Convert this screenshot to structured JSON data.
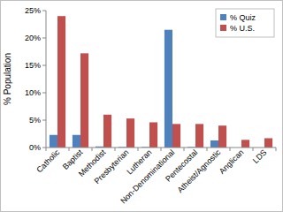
{
  "chart_data": {
    "type": "bar",
    "y_label": "% Population",
    "categories": [
      "Catholic",
      "Baptist",
      "Methodist",
      "Presbyterian",
      "Lutheran",
      "Non-Denominational",
      "Pentecostal",
      "Atheist/Agnostic",
      "Anglican",
      "LDS"
    ],
    "series": [
      {
        "name": "% Quiz",
        "color": "#4f81bd",
        "values": [
          2.3,
          2.3,
          0.2,
          0.1,
          0.1,
          21.5,
          0.1,
          1.3,
          0,
          0
        ]
      },
      {
        "name": "% U.S.",
        "color": "#c0504d",
        "values": [
          24,
          17.2,
          6,
          5.3,
          4.6,
          4.3,
          4.3,
          4,
          1.4,
          1.7
        ]
      }
    ],
    "ylim": [
      0,
      25
    ],
    "yticks": [
      {
        "value": 0,
        "label": "0%"
      },
      {
        "value": 5,
        "label": "5%"
      },
      {
        "value": 10,
        "label": "10%"
      },
      {
        "value": 15,
        "label": "15%"
      },
      {
        "value": 20,
        "label": "20%"
      },
      {
        "value": 25,
        "label": "25%"
      }
    ],
    "grid": false,
    "legend": "top-right"
  }
}
